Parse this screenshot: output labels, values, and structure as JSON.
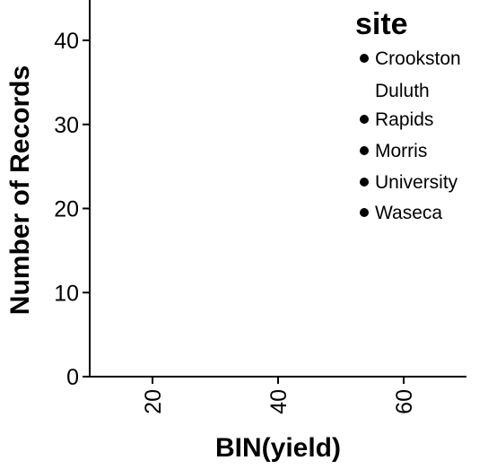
{
  "chart_data": {
    "type": "scatter",
    "title": "",
    "xlabel": "BIN(yield)",
    "ylabel": "Number of Records",
    "xlim": [
      10,
      70
    ],
    "ylim": [
      0,
      46
    ],
    "xticks": [
      "20",
      "40",
      "60"
    ],
    "yticks": [
      "0",
      "10",
      "20",
      "30",
      "40"
    ],
    "legend": {
      "title": "site",
      "placement": "top-right",
      "entries": [
        {
          "label": "Crookston",
          "marker": true
        },
        {
          "label": "Duluth",
          "marker": false
        },
        {
          "label": "Rapids",
          "marker": true
        },
        {
          "label": "Morris",
          "marker": true
        },
        {
          "label": "University",
          "marker": true
        },
        {
          "label": "Waseca",
          "marker": true
        }
      ]
    },
    "series": [],
    "grid": false
  }
}
